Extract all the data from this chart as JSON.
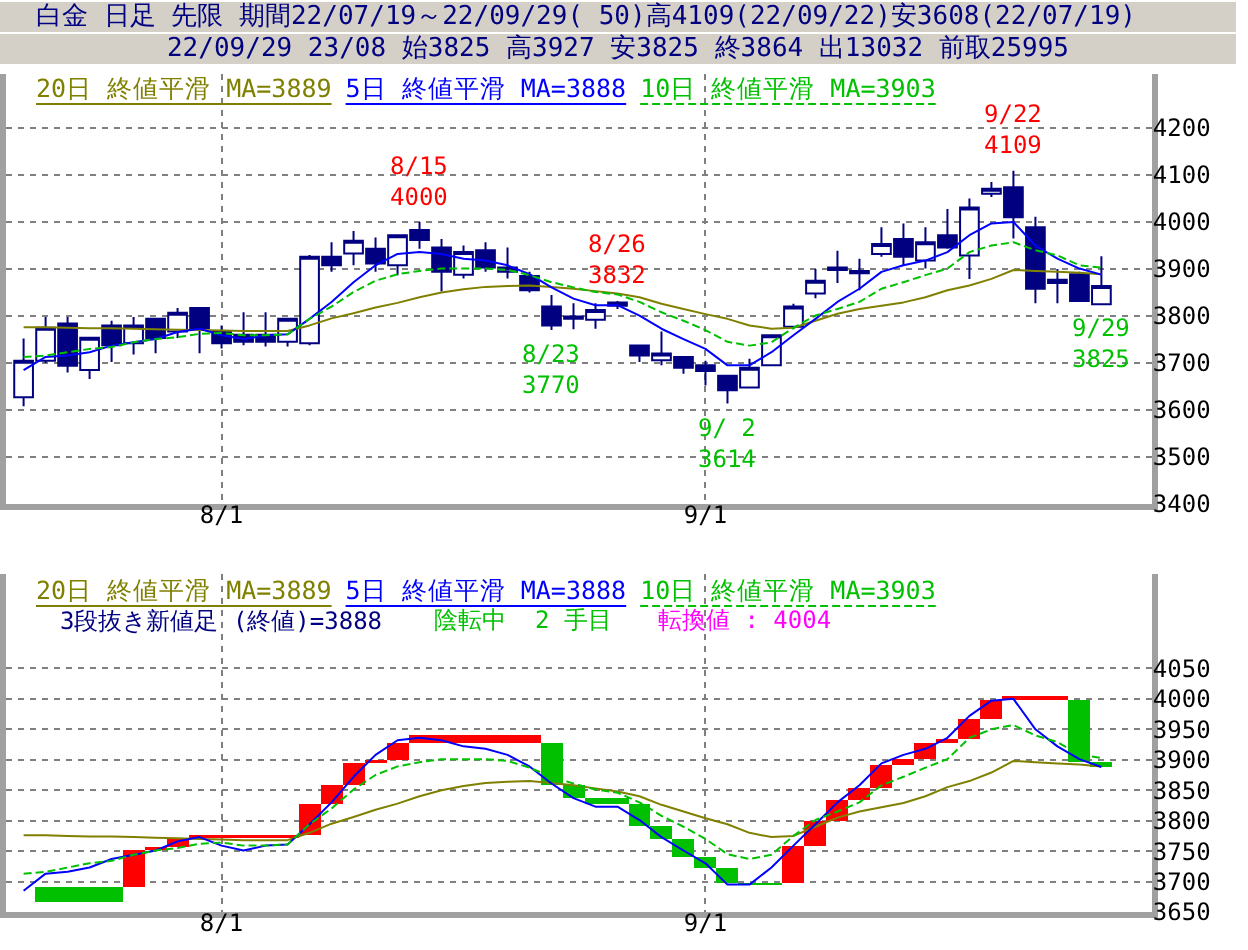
{
  "chart_data": [
    {
      "type": "candlestick",
      "title": "白金 日足 先限 期間22/07/19～22/09/29( 50)高4109(22/09/22)安3608(22/07/19)",
      "subtitle": "22/09/29 23/08 始3825 高3927 安3825 終3864 出13032 前取25995",
      "categories": [
        null,
        null,
        null,
        null,
        null,
        null,
        null,
        null,
        null,
        "8/1",
        null,
        null,
        null,
        null,
        null,
        null,
        null,
        null,
        null,
        null,
        null,
        null,
        null,
        null,
        null,
        null,
        null,
        null,
        null,
        null,
        null,
        "9/1",
        null,
        null,
        null,
        null,
        null,
        null,
        null,
        null,
        null,
        null,
        null,
        null,
        null,
        null,
        null,
        null,
        null,
        null
      ],
      "color": "#000080",
      "ohlc": [
        [
          3627,
          3752,
          3608,
          3705
        ],
        [
          3705,
          3798,
          3700,
          3775
        ],
        [
          3784,
          3798,
          3680,
          3694
        ],
        [
          3685,
          3755,
          3666,
          3754
        ],
        [
          3780,
          3790,
          3702,
          3738
        ],
        [
          3742,
          3798,
          3718,
          3780
        ],
        [
          3794,
          3796,
          3721,
          3753
        ],
        [
          3767,
          3817,
          3753,
          3807
        ],
        [
          3817,
          3817,
          3721,
          3774
        ],
        [
          3767,
          3780,
          3731,
          3742
        ],
        [
          3760,
          3808,
          3738,
          3745
        ],
        [
          3760,
          3808,
          3735,
          3745
        ],
        [
          3745,
          3796,
          3735,
          3794
        ],
        [
          3742,
          3930,
          3738,
          3926
        ],
        [
          3926,
          3957,
          3894,
          3908
        ],
        [
          3933,
          3981,
          3908,
          3960
        ],
        [
          3943,
          3967,
          3894,
          3912
        ],
        [
          3908,
          3972,
          3887,
          3972
        ],
        [
          3983,
          4000,
          3943,
          3962
        ],
        [
          3946,
          3964,
          3852,
          3894
        ],
        [
          3888,
          3950,
          3880,
          3936
        ],
        [
          3940,
          3957,
          3894,
          3903
        ],
        [
          3894,
          3946,
          3880,
          3903
        ],
        [
          3885,
          3894,
          3850,
          3855
        ],
        [
          3820,
          3845,
          3770,
          3780
        ],
        [
          3799,
          3827,
          3772,
          3794
        ],
        [
          3792,
          3827,
          3773,
          3813
        ],
        [
          3829,
          3832,
          3815,
          3822
        ],
        [
          3737,
          3737,
          3702,
          3716
        ],
        [
          3706,
          3767,
          3695,
          3720
        ],
        [
          3713,
          3713,
          3677,
          3690
        ],
        [
          3695,
          3705,
          3652,
          3683
        ],
        [
          3673,
          3673,
          3614,
          3642
        ],
        [
          3648,
          3709,
          3648,
          3690
        ],
        [
          3695,
          3759,
          3695,
          3759
        ],
        [
          3777,
          3826,
          3772,
          3820
        ],
        [
          3848,
          3900,
          3838,
          3875
        ],
        [
          3903,
          3939,
          3870,
          3898
        ],
        [
          3896,
          3922,
          3855,
          3891
        ],
        [
          3932,
          3989,
          3926,
          3953
        ],
        [
          3964,
          3997,
          3908,
          3926
        ],
        [
          3918,
          3989,
          3901,
          3957
        ],
        [
          3972,
          4028,
          3943,
          3946
        ],
        [
          3929,
          4050,
          3879,
          4031
        ],
        [
          4060,
          4085,
          4053,
          4071
        ],
        [
          4074,
          4109,
          3965,
          4010
        ],
        [
          3989,
          4011,
          3827,
          3858
        ],
        [
          3870,
          3900,
          3827,
          3877
        ],
        [
          3889,
          3894,
          3830,
          3832
        ],
        [
          3825,
          3927,
          3825,
          3864
        ]
      ],
      "series": [
        {
          "type": "line",
          "name": "20日 終値平滑 MA=3889",
          "color": "#808000",
          "values": [
            3776,
            3776,
            3775,
            3774,
            3774,
            3773,
            3772,
            3771,
            3770,
            3769,
            3768,
            3768,
            3768,
            3780,
            3795,
            3806,
            3818,
            3828,
            3840,
            3850,
            3857,
            3862,
            3864,
            3865,
            3862,
            3858,
            3853,
            3848,
            3840,
            3826,
            3815,
            3804,
            3794,
            3780,
            3773,
            3775,
            3790,
            3805,
            3815,
            3822,
            3829,
            3840,
            3855,
            3865,
            3879,
            3898,
            3896,
            3894,
            3892,
            3889
          ]
        },
        {
          "type": "line",
          "name": "5日 終値平滑 MA=3888",
          "color": "#0000ff",
          "values": [
            3685,
            3713,
            3716,
            3723,
            3737,
            3744,
            3751,
            3766,
            3773,
            3759,
            3751,
            3759,
            3761,
            3794,
            3830,
            3872,
            3908,
            3932,
            3936,
            3932,
            3922,
            3918,
            3908,
            3889,
            3861,
            3837,
            3823,
            3823,
            3801,
            3773,
            3751,
            3730,
            3695,
            3695,
            3723,
            3759,
            3794,
            3830,
            3858,
            3894,
            3908,
            3918,
            3936,
            3972,
            3997,
            4000,
            3950,
            3922,
            3901,
            3888
          ]
        },
        {
          "type": "line",
          "name": "10日 終値平滑 MA=3903",
          "color": "#00c000",
          "line_style": "dashed",
          "values": [
            3713,
            3716,
            3723,
            3730,
            3734,
            3744,
            3751,
            3755,
            3762,
            3764,
            3759,
            3759,
            3761,
            3794,
            3820,
            3851,
            3875,
            3889,
            3896,
            3901,
            3901,
            3901,
            3898,
            3887,
            3872,
            3861,
            3851,
            3846,
            3830,
            3808,
            3790,
            3770,
            3745,
            3737,
            3744,
            3775,
            3801,
            3815,
            3830,
            3858,
            3872,
            3887,
            3901,
            3936,
            3950,
            3957,
            3940,
            3929,
            3908,
            3903
          ]
        }
      ],
      "annotations": [
        {
          "text": "8/15\n4000",
          "y": 4000
        },
        {
          "text": "8/23\n3770",
          "y": 3770
        },
        {
          "text": "8/26\n3832",
          "y": 3832
        },
        {
          "text": "9/ 2\n3614",
          "y": 3614
        },
        {
          "text": "9/22\n4109",
          "y": 4109
        },
        {
          "text": "9/29\n3825",
          "y": 3825
        }
      ],
      "ylim": [
        3400,
        4315
      ],
      "yticks": [
        3400,
        3500,
        3600,
        3700,
        3800,
        3900,
        4000,
        4100,
        4200
      ],
      "grid": true,
      "legend": "top left"
    },
    {
      "type": "bar",
      "title": "3段抜き新値足 (終値)=3888",
      "annotations": [
        "陰転中  2 手目",
        "転換値 : 4004"
      ],
      "categories": [
        null,
        null,
        null,
        null,
        null,
        null,
        null,
        null,
        null,
        "8/1",
        null,
        null,
        null,
        null,
        null,
        null,
        null,
        null,
        null,
        null,
        null,
        null,
        null,
        null,
        null,
        null,
        null,
        null,
        null,
        null,
        null,
        "9/1",
        null,
        null,
        null,
        null,
        null,
        null,
        null,
        null,
        null,
        null,
        null,
        null,
        null,
        null,
        null,
        null,
        null,
        null
      ],
      "series": [
        {
          "type": "bar",
          "base": [
            null,
            3691,
            3691,
            3691,
            3691,
            3691,
            3752,
            3757,
            3771,
            3771,
            3771,
            3771,
            3771,
            3777,
            3828,
            3858,
            3894,
            3899,
            3927,
            3927,
            3927,
            3927,
            3927,
            3927,
            3927,
            3858,
            3837,
            3837,
            3828,
            3792,
            3770,
            3741,
            3722,
            3697,
            3697,
            3697,
            3759,
            3799,
            3834,
            3853,
            3891,
            3902,
            3927,
            3934,
            3967,
            3998,
            3998,
            3998,
            3998,
            3896
          ],
          "values": [
            null,
            -24,
            -24,
            -24,
            -24,
            61,
            5,
            14,
            6,
            6,
            6,
            6,
            6,
            51,
            30,
            36,
            5,
            28,
            14,
            14,
            14,
            14,
            14,
            14,
            -69,
            -21,
            -9,
            -9,
            -36,
            -22,
            -29,
            -19,
            -25,
            -3,
            -3,
            62,
            40,
            35,
            19,
            38,
            11,
            25,
            7,
            33,
            31,
            6,
            6,
            6,
            -102,
            -8
          ],
          "colors": [
            null,
            "#00c000",
            "#00c000",
            "#00c000",
            "#00c000",
            "#ff0000",
            "#ff0000",
            "#ff0000",
            "#ff0000",
            "#ff0000",
            "#ff0000",
            "#ff0000",
            "#ff0000",
            "#ff0000",
            "#ff0000",
            "#ff0000",
            "#ff0000",
            "#ff0000",
            "#ff0000",
            "#ff0000",
            "#ff0000",
            "#ff0000",
            "#ff0000",
            "#ff0000",
            "#00c000",
            "#00c000",
            "#00c000",
            "#00c000",
            "#00c000",
            "#00c000",
            "#00c000",
            "#00c000",
            "#00c000",
            "#00c000",
            "#00c000",
            "#ff0000",
            "#ff0000",
            "#ff0000",
            "#ff0000",
            "#ff0000",
            "#ff0000",
            "#ff0000",
            "#ff0000",
            "#ff0000",
            "#ff0000",
            "#ff0000",
            "#ff0000",
            "#ff0000",
            "#00c000",
            "#00c000"
          ]
        },
        {
          "type": "line",
          "name": "20日 終値平滑 MA=3889",
          "color": "#808000",
          "values": [
            3776,
            3776,
            3775,
            3774,
            3774,
            3773,
            3772,
            3771,
            3770,
            3769,
            3768,
            3768,
            3768,
            3780,
            3795,
            3806,
            3818,
            3828,
            3840,
            3850,
            3857,
            3862,
            3864,
            3865,
            3862,
            3858,
            3853,
            3848,
            3840,
            3826,
            3815,
            3804,
            3794,
            3780,
            3773,
            3775,
            3790,
            3805,
            3815,
            3822,
            3829,
            3840,
            3855,
            3865,
            3879,
            3898,
            3896,
            3894,
            3892,
            3889
          ]
        },
        {
          "type": "line",
          "name": "5日 終値平滑 MA=3888",
          "color": "#0000ff",
          "values": [
            3685,
            3713,
            3716,
            3723,
            3737,
            3744,
            3751,
            3766,
            3773,
            3759,
            3751,
            3759,
            3761,
            3794,
            3830,
            3872,
            3908,
            3932,
            3936,
            3932,
            3922,
            3918,
            3908,
            3889,
            3861,
            3837,
            3823,
            3823,
            3801,
            3773,
            3751,
            3730,
            3695,
            3695,
            3723,
            3759,
            3794,
            3830,
            3858,
            3894,
            3908,
            3918,
            3936,
            3972,
            3997,
            4000,
            3950,
            3922,
            3901,
            3888
          ]
        },
        {
          "type": "line",
          "name": "10日 終値平滑 MA=3903",
          "color": "#00c000",
          "line_style": "dashed",
          "values": [
            3713,
            3716,
            3723,
            3730,
            3734,
            3744,
            3751,
            3755,
            3762,
            3764,
            3759,
            3759,
            3761,
            3794,
            3820,
            3851,
            3875,
            3889,
            3896,
            3901,
            3901,
            3901,
            3898,
            3887,
            3872,
            3861,
            3851,
            3846,
            3830,
            3808,
            3790,
            3770,
            3745,
            3737,
            3744,
            3775,
            3801,
            3815,
            3830,
            3858,
            3872,
            3887,
            3901,
            3936,
            3950,
            3957,
            3940,
            3929,
            3908,
            3903
          ]
        }
      ],
      "ylim": [
        3650,
        4205
      ],
      "yticks": [
        3650,
        3700,
        3750,
        3800,
        3850,
        3900,
        3950,
        4000,
        4050
      ],
      "grid": true,
      "legend": "top left"
    }
  ]
}
